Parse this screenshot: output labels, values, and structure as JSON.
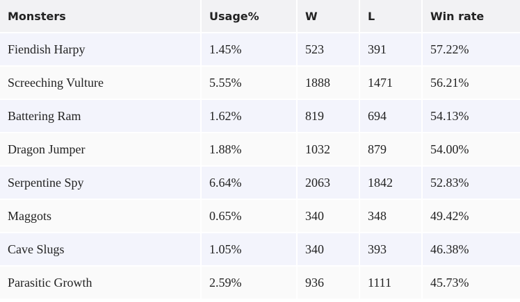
{
  "table": {
    "columns": [
      "Monsters",
      "Usage%",
      "W",
      "L",
      "Win rate"
    ],
    "rows": [
      [
        "Fiendish Harpy",
        "1.45%",
        "523",
        "391",
        "57.22%"
      ],
      [
        "Screeching Vulture",
        "5.55%",
        "1888",
        "1471",
        "56.21%"
      ],
      [
        "Battering Ram",
        "1.62%",
        "819",
        "694",
        "54.13%"
      ],
      [
        "Dragon Jumper",
        "1.88%",
        "1032",
        "879",
        "54.00%"
      ],
      [
        "Serpentine Spy",
        "6.64%",
        "2063",
        "1842",
        "52.83%"
      ],
      [
        "Maggots",
        "0.65%",
        "340",
        "348",
        "49.42%"
      ],
      [
        "Cave Slugs",
        "1.05%",
        "340",
        "393",
        "46.38%"
      ],
      [
        "Parasitic Growth",
        "2.59%",
        "936",
        "1111",
        "45.73%"
      ]
    ]
  }
}
